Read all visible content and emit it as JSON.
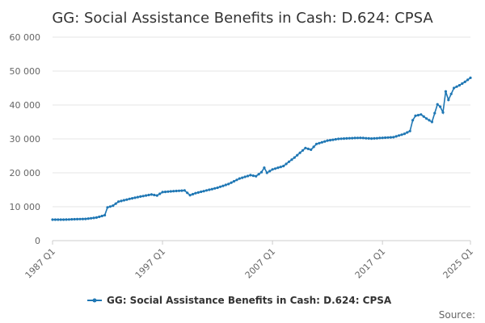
{
  "chart_data": {
    "type": "line",
    "title": "GG: Social Assistance Benefits in Cash: D.624: CPSA",
    "ylim": [
      0,
      60000
    ],
    "y_ticks": [
      0,
      10000,
      20000,
      30000,
      40000,
      50000,
      60000
    ],
    "y_tick_labels": [
      "0",
      "10 000",
      "20 000",
      "30 000",
      "40 000",
      "50 000",
      "60 000"
    ],
    "x_ticks": [
      "1987 Q1",
      "1997 Q1",
      "2007 Q1",
      "2017 Q1",
      "2025 Q1"
    ],
    "grid": "horizontal",
    "legend_position": "bottom",
    "series": [
      {
        "name": "GG: Social Assistance Benefits in Cash: D.624: CPSA",
        "color": "#1f77b4",
        "points": [
          [
            "1987 Q1",
            6200
          ],
          [
            "1988 Q1",
            6200
          ],
          [
            "1989 Q1",
            6300
          ],
          [
            "1990 Q1",
            6400
          ],
          [
            "1991 Q1",
            6800
          ],
          [
            "1991 Q4",
            7500
          ],
          [
            "1992 Q1",
            9800
          ],
          [
            "1992 Q3",
            10300
          ],
          [
            "1993 Q1",
            11500
          ],
          [
            "1994 Q1",
            12300
          ],
          [
            "1995 Q1",
            13000
          ],
          [
            "1996 Q1",
            13600
          ],
          [
            "1996 Q3",
            13300
          ],
          [
            "1997 Q1",
            14300
          ],
          [
            "1998 Q1",
            14600
          ],
          [
            "1999 Q1",
            14800
          ],
          [
            "1999 Q3",
            13400
          ],
          [
            "2000 Q1",
            14000
          ],
          [
            "2001 Q1",
            14800
          ],
          [
            "2002 Q1",
            15600
          ],
          [
            "2003 Q1",
            16700
          ],
          [
            "2004 Q1",
            18300
          ],
          [
            "2005 Q1",
            19300
          ],
          [
            "2005 Q3",
            19000
          ],
          [
            "2006 Q1",
            20200
          ],
          [
            "2006 Q2",
            21500
          ],
          [
            "2006 Q3",
            20000
          ],
          [
            "2007 Q1",
            21000
          ],
          [
            "2008 Q1",
            22000
          ],
          [
            "2009 Q1",
            24500
          ],
          [
            "2010 Q1",
            27300
          ],
          [
            "2010 Q3",
            26800
          ],
          [
            "2011 Q1",
            28500
          ],
          [
            "2012 Q1",
            29500
          ],
          [
            "2013 Q1",
            30000
          ],
          [
            "2014 Q1",
            30200
          ],
          [
            "2015 Q1",
            30300
          ],
          [
            "2016 Q1",
            30100
          ],
          [
            "2017 Q1",
            30300
          ],
          [
            "2018 Q1",
            30500
          ],
          [
            "2019 Q1",
            31500
          ],
          [
            "2019 Q3",
            32300
          ],
          [
            "2019 Q4",
            35500
          ],
          [
            "2020 Q1",
            36800
          ],
          [
            "2020 Q3",
            37200
          ],
          [
            "2021 Q1",
            36000
          ],
          [
            "2021 Q3",
            35000
          ],
          [
            "2022 Q1",
            40200
          ],
          [
            "2022 Q2",
            39500
          ],
          [
            "2022 Q3",
            37800
          ],
          [
            "2022 Q4",
            44000
          ],
          [
            "2023 Q1",
            41500
          ],
          [
            "2023 Q3",
            45000
          ],
          [
            "2024 Q1",
            45800
          ],
          [
            "2024 Q3",
            46800
          ],
          [
            "2025 Q1",
            48000
          ]
        ]
      }
    ]
  },
  "footer": {
    "source_label": "Source:"
  }
}
